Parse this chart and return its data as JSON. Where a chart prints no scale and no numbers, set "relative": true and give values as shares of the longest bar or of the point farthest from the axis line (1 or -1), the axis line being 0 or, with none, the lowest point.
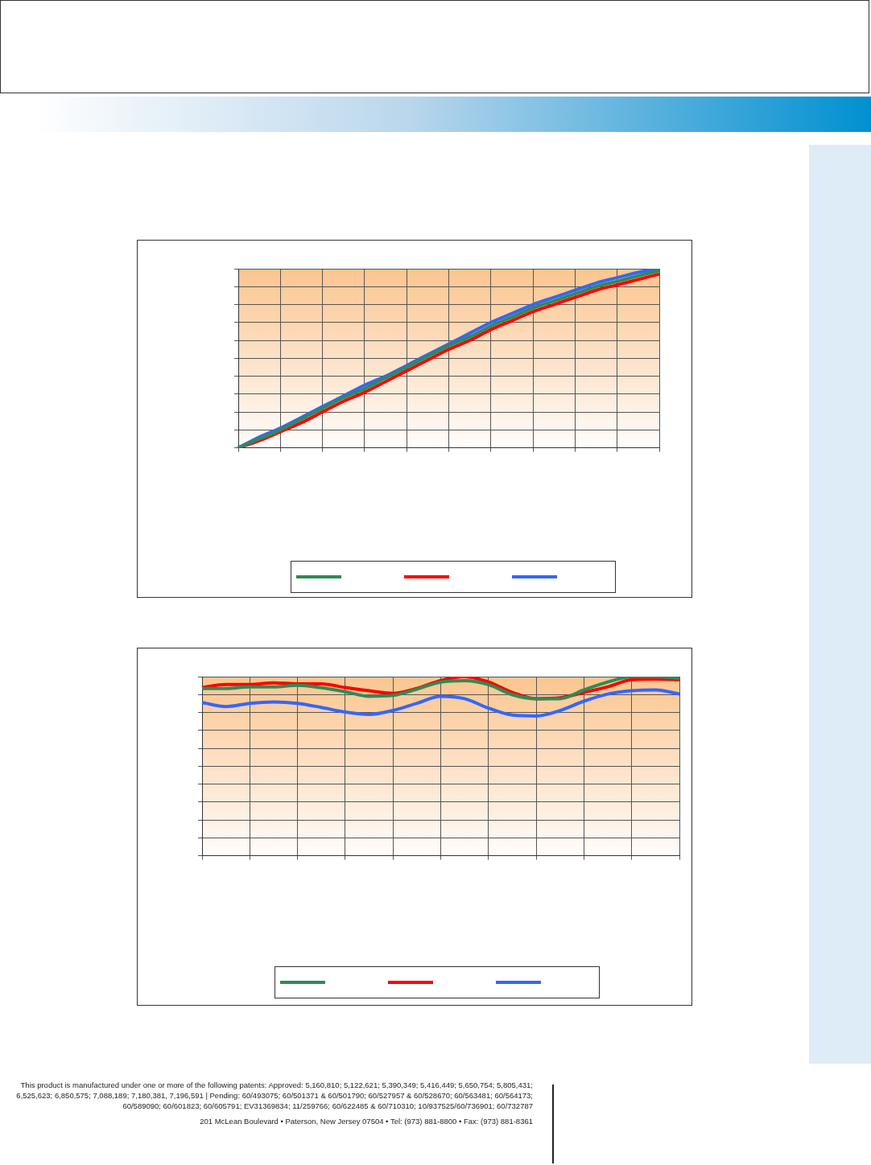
{
  "chart_data": [
    {
      "type": "line",
      "relative": true,
      "grid": true,
      "categories": [
        null,
        null,
        null,
        null,
        null,
        null,
        null,
        null,
        null,
        null,
        null,
        null,
        null,
        null,
        null,
        null,
        null,
        null,
        null,
        null,
        null
      ],
      "series": [
        {
          "color": "#2e8b57",
          "values": [
            0,
            0.05,
            0.1,
            0.16,
            0.22,
            0.28,
            0.33,
            0.39,
            0.45,
            0.51,
            0.57,
            0.62,
            0.68,
            0.73,
            0.78,
            0.82,
            0.86,
            0.9,
            0.93,
            0.96,
            0.99
          ]
        },
        {
          "color": "#ff0000",
          "values": [
            0,
            0.04,
            0.09,
            0.14,
            0.2,
            0.26,
            0.31,
            0.37,
            0.43,
            0.49,
            0.55,
            0.6,
            0.66,
            0.71,
            0.76,
            0.8,
            0.84,
            0.88,
            0.91,
            0.94,
            0.97
          ]
        },
        {
          "color": "#3366ff",
          "values": [
            0,
            0.06,
            0.11,
            0.17,
            0.23,
            0.29,
            0.35,
            0.4,
            0.46,
            0.52,
            0.58,
            0.64,
            0.7,
            0.75,
            0.8,
            0.84,
            0.88,
            0.92,
            0.95,
            0.98,
            1.0
          ]
        }
      ]
    },
    {
      "type": "line",
      "relative": true,
      "grid": true,
      "categories": [
        null,
        null,
        null,
        null,
        null,
        null,
        null,
        null,
        null,
        null,
        null,
        null,
        null,
        null,
        null,
        null,
        null,
        null,
        null,
        null,
        null
      ],
      "series": [
        {
          "color": "#2e8b57",
          "values": [
            0.934,
            0.934,
            0.943,
            0.943,
            0.952,
            0.938,
            0.916,
            0.89,
            0.895,
            0.93,
            0.97,
            0.978,
            0.956,
            0.899,
            0.877,
            0.877,
            0.926,
            0.97,
            1.0,
            1.0,
            0.991
          ]
        },
        {
          "color": "#ff0000",
          "values": [
            0.939,
            0.956,
            0.956,
            0.965,
            0.96,
            0.96,
            0.939,
            0.921,
            0.907,
            0.934,
            0.978,
            1.0,
            0.97,
            0.912,
            0.877,
            0.882,
            0.912,
            0.943,
            0.983,
            0.987,
            0.983
          ]
        },
        {
          "color": "#3366ff",
          "values": [
            0.855,
            0.833,
            0.851,
            0.859,
            0.851,
            0.828,
            0.802,
            0.789,
            0.811,
            0.851,
            0.89,
            0.877,
            0.824,
            0.785,
            0.78,
            0.811,
            0.863,
            0.903,
            0.921,
            0.926,
            0.903
          ]
        }
      ],
      "annotations": [
        "This product is manufactured under one or more of the following patents: Approved: 5,160,810; 5,122,621; 5,390,349; 5,416,449; 5,650,754; 5,805,431; 6,525,623; 6,850,575; 7,088,189; 7,180,381, 7,196,591 | Pending: 60/493075; 60/501371 & 60/501790; 60/527957 & 60/528670; 60/563481; 60/564173; 60/589090; 60/601823; 60/605791; EV31369834; 11/259766; 60/622485 & 60/710310; 10/937525/60/736901; 60/732787",
        "201 McLean Boulevard • Paterson, New Jersey 07504 • Tel: (973) 881-8800 • Fax: (973) 881-8361"
      ]
    }
  ]
}
